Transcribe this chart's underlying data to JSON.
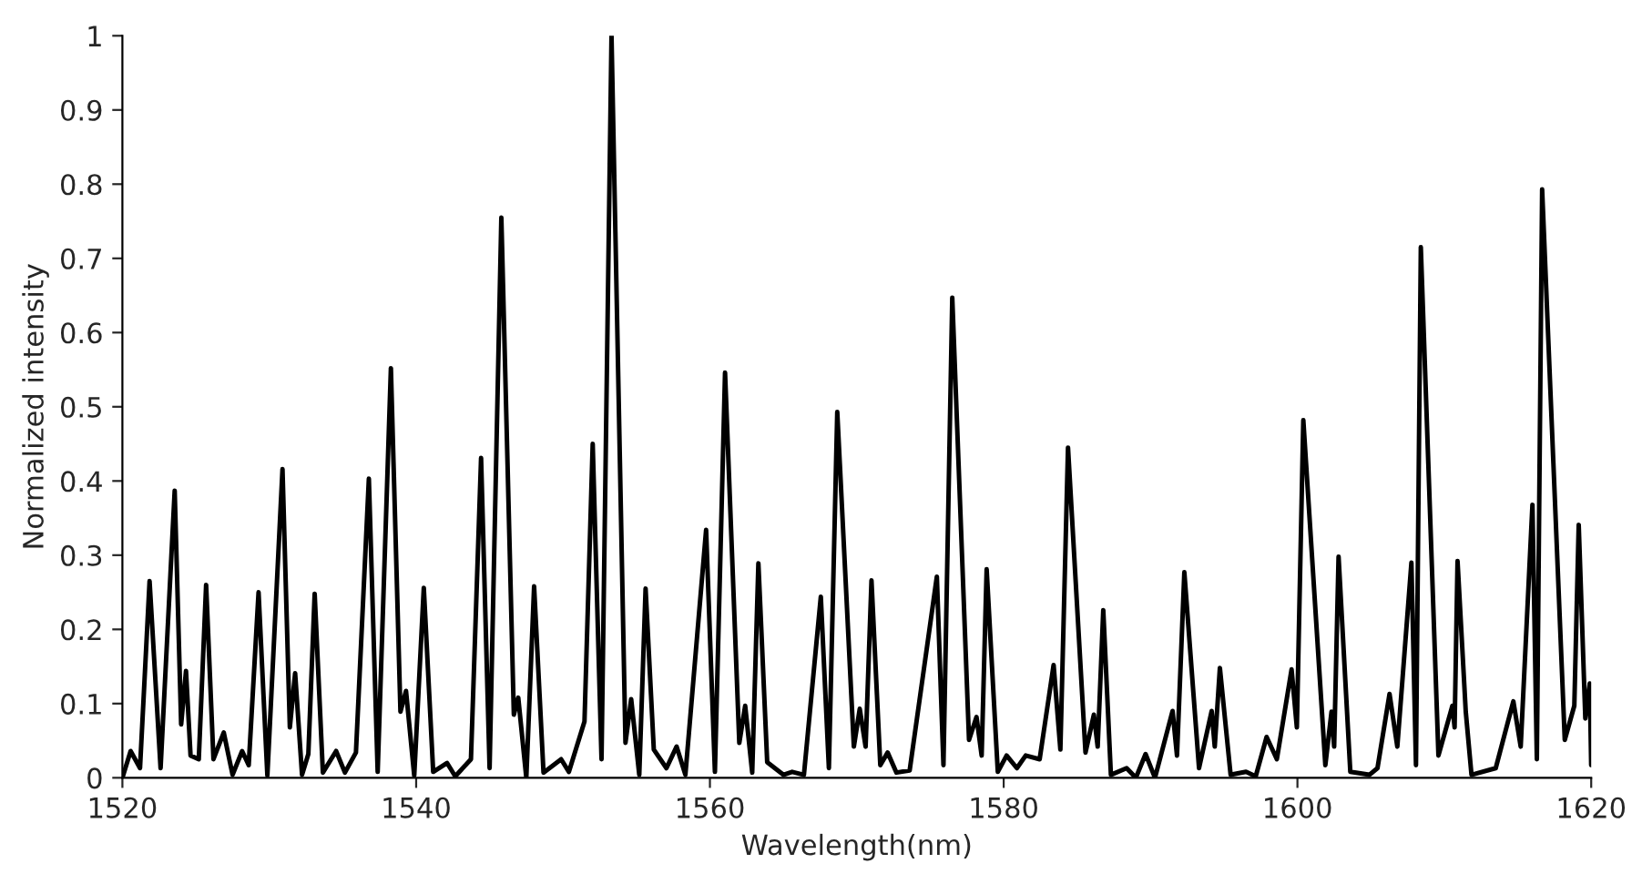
{
  "chart_data": {
    "type": "line",
    "xlabel": "Wavelength(nm)",
    "ylabel": "Normalized intensity",
    "xlim": [
      1520,
      1620
    ],
    "xticks": [
      1520,
      1540,
      1560,
      1580,
      1600,
      1620
    ],
    "ylim": [
      0,
      1
    ],
    "yticks": [
      0,
      0.1,
      0.2,
      0.3,
      0.4,
      0.5,
      0.6,
      0.7,
      0.8,
      0.9,
      1
    ],
    "grid": false,
    "legend": false,
    "marker": "none",
    "line_style": "solid",
    "series": [
      {
        "color": "#000000",
        "x": [
          1520.0,
          1520.56,
          1521.2,
          1521.85,
          1522.6,
          1523.56,
          1524.0,
          1524.33,
          1524.64,
          1525.2,
          1525.7,
          1526.2,
          1526.9,
          1527.5,
          1528.15,
          1528.6,
          1529.27,
          1529.87,
          1530.9,
          1531.4,
          1531.76,
          1532.23,
          1532.66,
          1533.09,
          1533.65,
          1534.55,
          1535.15,
          1535.9,
          1536.78,
          1537.38,
          1538.28,
          1538.93,
          1539.31,
          1539.87,
          1540.52,
          1541.16,
          1542.1,
          1542.66,
          1543.73,
          1544.42,
          1545.0,
          1545.8,
          1546.65,
          1546.95,
          1547.5,
          1548.03,
          1548.67,
          1549.87,
          1550.4,
          1551.46,
          1552.02,
          1552.62,
          1553.3,
          1554.25,
          1554.64,
          1555.19,
          1555.62,
          1556.18,
          1557.04,
          1557.73,
          1558.33,
          1559.74,
          1560.34,
          1561.03,
          1562.0,
          1562.4,
          1562.88,
          1563.3,
          1563.9,
          1565.0,
          1565.6,
          1566.4,
          1567.55,
          1568.1,
          1568.67,
          1569.8,
          1570.2,
          1570.6,
          1571.0,
          1571.6,
          1572.1,
          1572.7,
          1573.6,
          1575.45,
          1575.9,
          1576.5,
          1577.64,
          1578.15,
          1578.5,
          1578.84,
          1579.6,
          1580.2,
          1580.9,
          1581.5,
          1582.45,
          1583.4,
          1583.86,
          1584.38,
          1585.57,
          1586.14,
          1586.4,
          1586.78,
          1587.3,
          1588.37,
          1589.0,
          1589.66,
          1590.3,
          1591.5,
          1591.8,
          1592.3,
          1593.3,
          1594.16,
          1594.37,
          1594.72,
          1595.45,
          1596.5,
          1597.16,
          1597.9,
          1598.6,
          1599.6,
          1599.96,
          1600.4,
          1601.9,
          1602.32,
          1602.5,
          1602.8,
          1603.6,
          1604.9,
          1605.45,
          1606.27,
          1606.8,
          1607.76,
          1608.07,
          1608.4,
          1609.6,
          1610.55,
          1610.7,
          1610.9,
          1611.46,
          1611.85,
          1613.5,
          1614.7,
          1615.2,
          1616.0,
          1616.3,
          1616.66,
          1618.2,
          1618.85,
          1619.15,
          1619.6,
          1619.9,
          1620.0
        ],
        "values": [
          0.0,
          0.036,
          0.013,
          0.265,
          0.013,
          0.387,
          0.072,
          0.144,
          0.03,
          0.025,
          0.26,
          0.025,
          0.061,
          0.004,
          0.036,
          0.017,
          0.25,
          0.003,
          0.416,
          0.068,
          0.141,
          0.004,
          0.032,
          0.248,
          0.007,
          0.036,
          0.007,
          0.034,
          0.403,
          0.008,
          0.552,
          0.089,
          0.117,
          0.003,
          0.256,
          0.008,
          0.02,
          0.002,
          0.025,
          0.431,
          0.013,
          0.755,
          0.085,
          0.108,
          0.0,
          0.258,
          0.007,
          0.025,
          0.008,
          0.076,
          0.45,
          0.025,
          1.0,
          0.047,
          0.106,
          0.004,
          0.255,
          0.038,
          0.013,
          0.042,
          0.004,
          0.334,
          0.008,
          0.546,
          0.047,
          0.097,
          0.007,
          0.289,
          0.021,
          0.004,
          0.008,
          0.004,
          0.244,
          0.013,
          0.493,
          0.042,
          0.093,
          0.042,
          0.266,
          0.017,
          0.034,
          0.007,
          0.01,
          0.271,
          0.017,
          0.647,
          0.051,
          0.082,
          0.03,
          0.281,
          0.008,
          0.03,
          0.013,
          0.03,
          0.025,
          0.152,
          0.038,
          0.445,
          0.034,
          0.085,
          0.042,
          0.226,
          0.004,
          0.013,
          0.0,
          0.032,
          0.0,
          0.09,
          0.03,
          0.277,
          0.013,
          0.09,
          0.042,
          0.148,
          0.004,
          0.008,
          0.002,
          0.055,
          0.025,
          0.146,
          0.068,
          0.482,
          0.017,
          0.089,
          0.042,
          0.298,
          0.008,
          0.004,
          0.013,
          0.113,
          0.042,
          0.29,
          0.017,
          0.715,
          0.03,
          0.097,
          0.068,
          0.292,
          0.089,
          0.004,
          0.013,
          0.103,
          0.042,
          0.368,
          0.025,
          0.793,
          0.051,
          0.097,
          0.341,
          0.08,
          0.127,
          0.017
        ]
      }
    ]
  }
}
